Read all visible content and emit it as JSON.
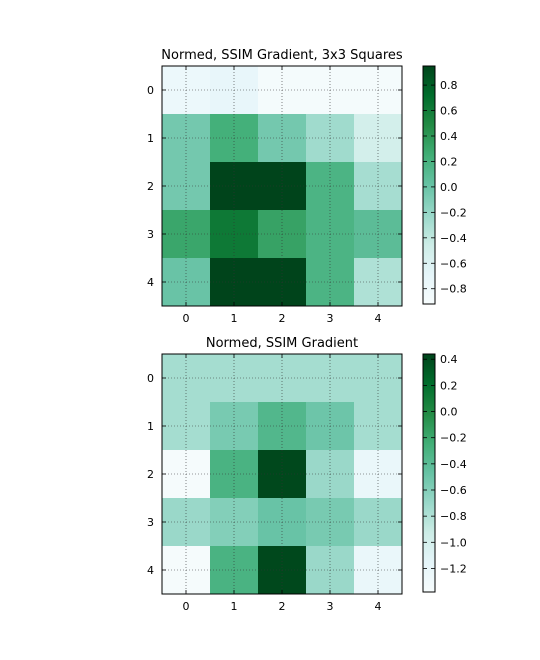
{
  "chart_data": [
    {
      "type": "heatmap",
      "title": "Normed, SSIM Gradient, 3x3 Squares",
      "x_ticks": [
        "0",
        "1",
        "2",
        "3",
        "4"
      ],
      "y_ticks": [
        "0",
        "1",
        "2",
        "3",
        "4"
      ],
      "grid": true,
      "colormap": "BuGn",
      "vmin": -0.92,
      "vmax": 0.95,
      "colorbar_ticks": [
        0.8,
        0.6,
        0.4,
        0.2,
        0.0,
        -0.2,
        -0.4,
        -0.6,
        -0.8
      ],
      "colorbar_tick_labels": [
        "0.8",
        "0.6",
        "0.4",
        "0.2",
        "0.0",
        "−0.2",
        "−0.4",
        "−0.6",
        "−0.8"
      ],
      "values": [
        [
          -0.78,
          -0.72,
          -0.88,
          -0.88,
          -0.88
        ],
        [
          -0.05,
          0.23,
          -0.05,
          -0.25,
          -0.52
        ],
        [
          -0.05,
          0.95,
          0.95,
          0.18,
          -0.28
        ],
        [
          0.3,
          0.62,
          0.33,
          0.18,
          0.08
        ],
        [
          0.0,
          0.95,
          0.95,
          0.18,
          -0.32
        ]
      ]
    },
    {
      "type": "heatmap",
      "title": "Normed, SSIM Gradient",
      "x_ticks": [
        "0",
        "1",
        "2",
        "3",
        "4"
      ],
      "y_ticks": [
        "0",
        "1",
        "2",
        "3",
        "4"
      ],
      "grid": true,
      "colormap": "BuGn",
      "vmin": -1.38,
      "vmax": 0.44,
      "colorbar_ticks": [
        0.4,
        0.2,
        0.0,
        -0.2,
        -0.4,
        -0.6,
        -0.8,
        -1.0,
        -1.2
      ],
      "colorbar_tick_labels": [
        "0.4",
        "0.2",
        "0.0",
        "−0.2",
        "−0.4",
        "−0.6",
        "−0.8",
        "−1.0",
        "−1.2"
      ],
      "values": [
        [
          -0.75,
          -0.75,
          -0.75,
          -0.75,
          -0.75
        ],
        [
          -0.75,
          -0.55,
          -0.35,
          -0.5,
          -0.75
        ],
        [
          -1.35,
          -0.3,
          0.42,
          -0.7,
          -1.22
        ],
        [
          -0.7,
          -0.6,
          -0.48,
          -0.55,
          -0.7
        ],
        [
          -1.35,
          -0.3,
          0.42,
          -0.7,
          -1.22
        ]
      ]
    }
  ]
}
